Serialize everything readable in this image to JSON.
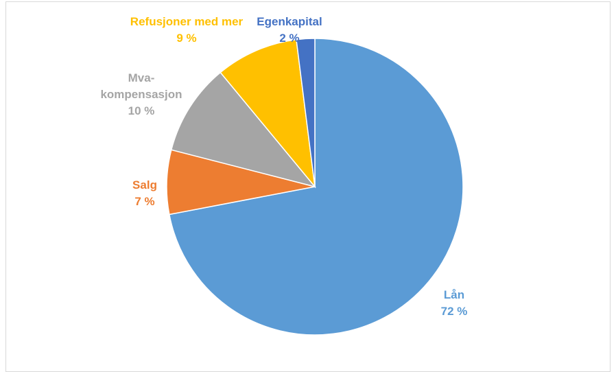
{
  "chart_data": {
    "type": "pie",
    "categories": [
      "Lån",
      "Salg",
      "Mva-kompensasjon",
      "Refusjoner med mer",
      "Egenkapital"
    ],
    "values": [
      72,
      7,
      10,
      9,
      2
    ],
    "value_labels": [
      "72 %",
      "7 %",
      "10 %",
      "9 %",
      "2 %"
    ],
    "colors": [
      "#5b9bd5",
      "#ed7d31",
      "#a5a5a5",
      "#ffc000",
      "#4472c4"
    ]
  }
}
